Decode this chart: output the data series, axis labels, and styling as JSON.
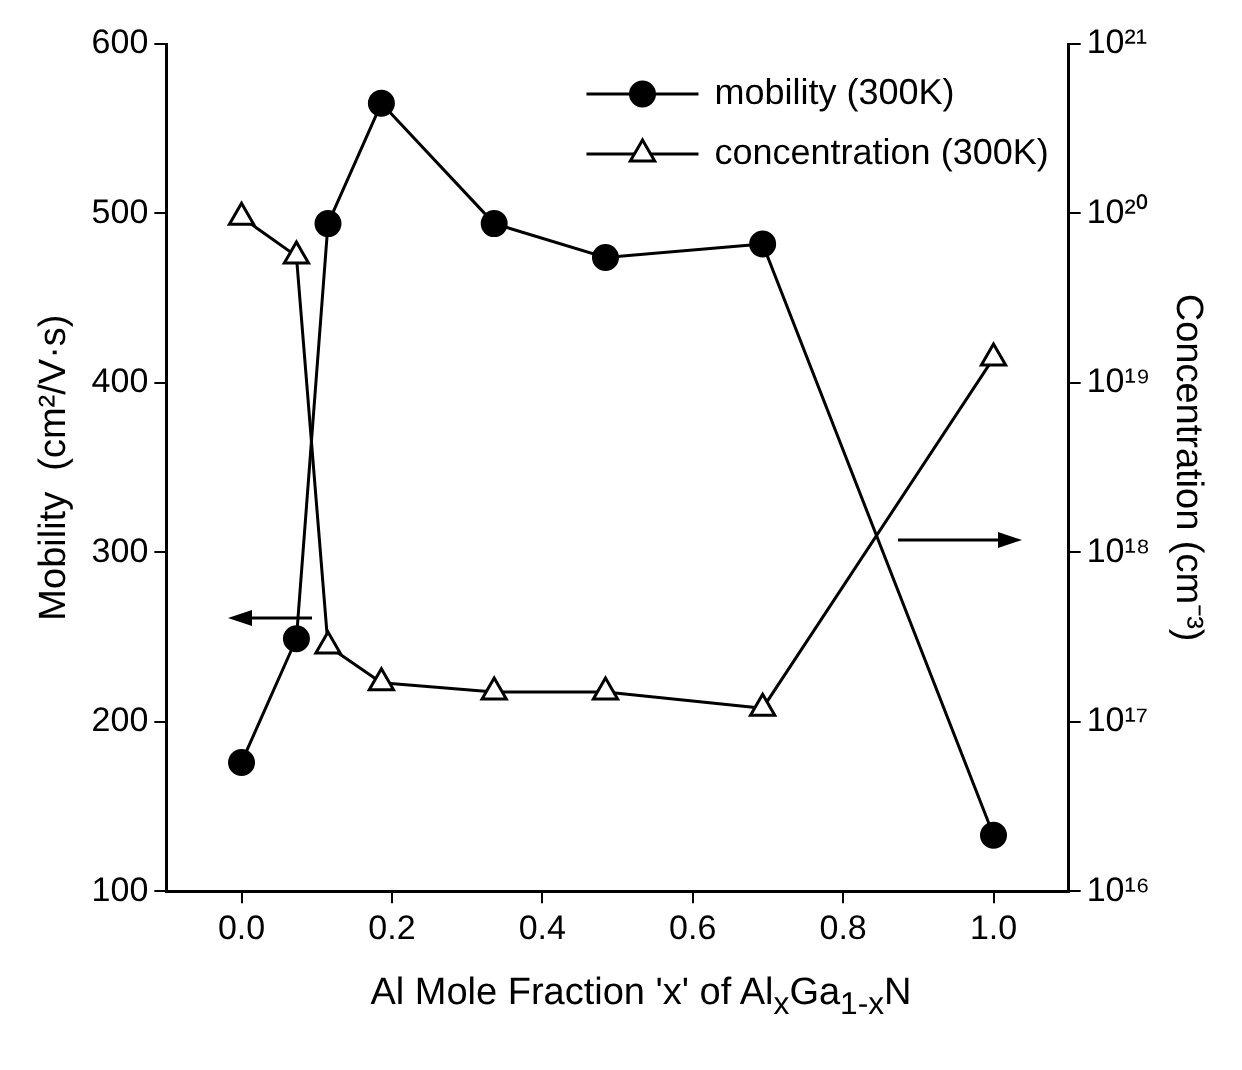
{
  "chart_data": {
    "type": "line",
    "xlabel": "Al Mole Fraction  'x'  of Al$_{x}$Ga$_{1-x}$N",
    "ylabel": "Mobility  (cm²/V·s)",
    "y2label": "Concentration (cm⁻³)",
    "xlim": [
      -0.1,
      1.1
    ],
    "xticks": [
      {
        "value": 0,
        "label": "0.0"
      },
      0.2,
      0.4,
      0.6,
      0.8,
      {
        "value": 1,
        "label": "1.0"
      }
    ],
    "ylim": [
      100,
      600
    ],
    "yticks": [
      100,
      200,
      300,
      400,
      500,
      600
    ],
    "y2lim": [
      1e+16,
      1e+21
    ],
    "y2ticks": [
      {
        "value": 1e+16,
        "label": "10¹⁶"
      },
      {
        "value": 1e+17,
        "label": "10¹⁷"
      },
      {
        "value": 1e+18,
        "label": "10¹⁸"
      },
      {
        "value": 1e+19,
        "label": "10¹⁹"
      },
      {
        "value": 1e+20,
        "label": "10²⁰"
      },
      {
        "value": 1e+21,
        "label": "10²¹"
      }
    ],
    "log": "y2",
    "grid": false,
    "legend": "top right",
    "line_style": "solid",
    "series": [
      {
        "name": "mobility (300K)",
        "color": "#000000",
        "marker": "circle",
        "x": [
          0,
          0.073,
          0.115,
          0.186,
          0.336,
          0.484,
          0.693,
          1.0
        ],
        "values": [
          176,
          249,
          494,
          565,
          494,
          474,
          482,
          133
        ]
      },
      {
        "name": "concentration (300K)",
        "color": "#000000",
        "marker": "triangle",
        "axis": "y2",
        "x": [
          0,
          0.073,
          0.115,
          0.186,
          0.336,
          0.484,
          0.693,
          1.0
        ],
        "values": [
          9.5e+19,
          5.6e+19,
          2.8e+17,
          1.7e+17,
          1.5e+17,
          1.5e+17,
          1.2e+17,
          1.4e+19
        ]
      }
    ]
  }
}
